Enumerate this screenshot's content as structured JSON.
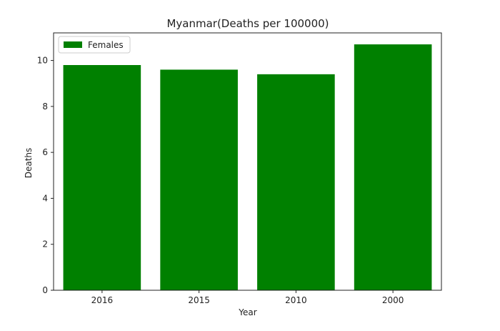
{
  "chart_data": {
    "type": "bar",
    "title": "Myanmar(Deaths per 100000)",
    "xlabel": "Year",
    "ylabel": "Deaths",
    "categories": [
      "2016",
      "2015",
      "2010",
      "2000"
    ],
    "series": [
      {
        "name": "Females",
        "values": [
          9.8,
          9.6,
          9.4,
          10.7
        ],
        "color": "#008000"
      }
    ],
    "ylim": [
      0,
      11.2
    ],
    "yticks": [
      0,
      2,
      4,
      6,
      8,
      10
    ],
    "ytick_labels": [
      "0",
      "2",
      "4",
      "6",
      "8",
      "10"
    ],
    "grid": false,
    "legend_position": "top-left"
  }
}
